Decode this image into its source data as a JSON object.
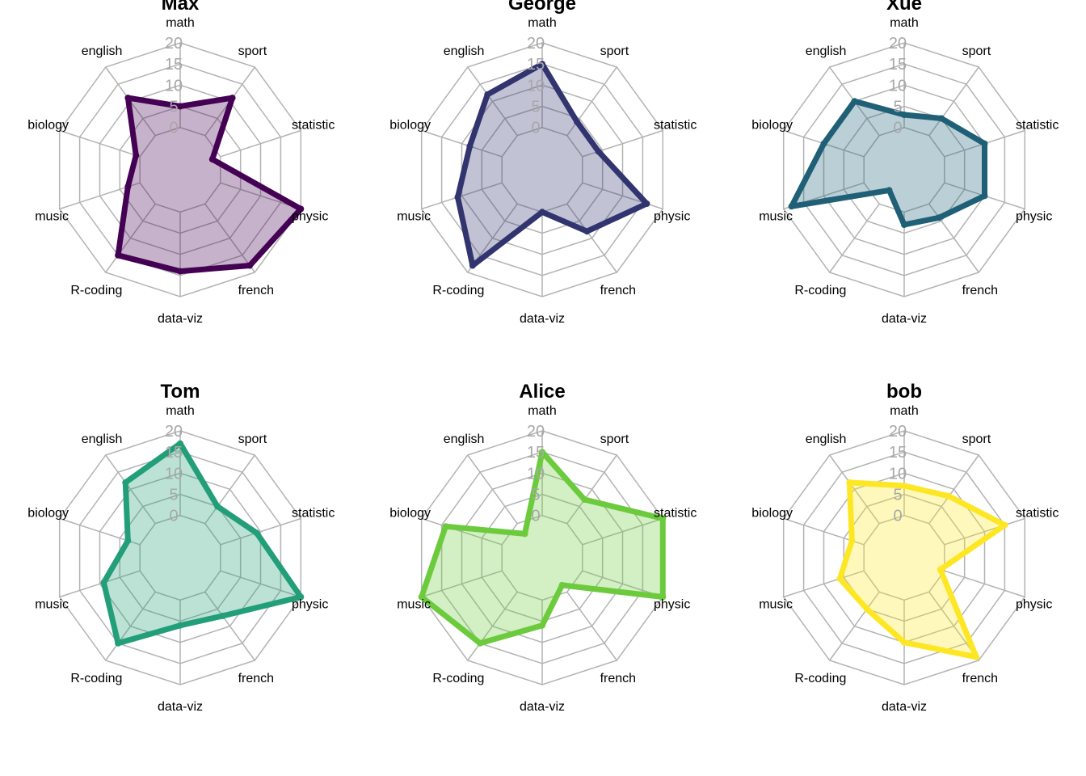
{
  "chart_data": [
    {
      "type": "radar",
      "title": "Max",
      "axes": [
        "math",
        "sport",
        "statistic",
        "physic",
        "french",
        "data-viz",
        "R-coding",
        "music",
        "biology",
        "english"
      ],
      "rticks": [
        0,
        5,
        10,
        15,
        20
      ],
      "rlim": [
        -10,
        20
      ],
      "color": "#440154",
      "values": [
        5,
        11,
        -2,
        20,
        18,
        14,
        15,
        3,
        1,
        11
      ]
    },
    {
      "type": "radar",
      "title": "George",
      "axes": [
        "math",
        "sport",
        "statistic",
        "physic",
        "french",
        "data-viz",
        "R-coding",
        "music",
        "biology",
        "english"
      ],
      "rticks": [
        0,
        5,
        10,
        15,
        20
      ],
      "rlim": [
        -10,
        20
      ],
      "color": "#31346F",
      "values": [
        15,
        4,
        4,
        16,
        8,
        0,
        18,
        11,
        8,
        12
      ]
    },
    {
      "type": "radar",
      "title": "Xue",
      "axes": [
        "math",
        "sport",
        "statistic",
        "physic",
        "french",
        "data-viz",
        "R-coding",
        "music",
        "biology",
        "english"
      ],
      "rticks": [
        0,
        5,
        10,
        15,
        20
      ],
      "rlim": [
        -10,
        20
      ],
      "color": "#1F6076",
      "values": [
        3,
        5,
        10,
        10,
        4,
        3,
        -4,
        18,
        10,
        10
      ]
    },
    {
      "type": "radar",
      "title": "Tom",
      "axes": [
        "math",
        "sport",
        "statistic",
        "physic",
        "french",
        "data-viz",
        "R-coding",
        "music",
        "biology",
        "english"
      ],
      "rticks": [
        0,
        5,
        10,
        15,
        20
      ],
      "rlim": [
        -10,
        20
      ],
      "color": "#229E78",
      "values": [
        17,
        5,
        9,
        20,
        7,
        6,
        15,
        9,
        3,
        12
      ]
    },
    {
      "type": "radar",
      "title": "Alice",
      "axes": [
        "math",
        "sport",
        "statistic",
        "physic",
        "french",
        "data-viz",
        "R-coding",
        "music",
        "biology",
        "english"
      ],
      "rticks": [
        0,
        5,
        10,
        15,
        20
      ],
      "rlim": [
        -10,
        20
      ],
      "color": "#6CCB3D",
      "values": [
        15,
        7,
        20,
        20,
        -2,
        6,
        15,
        20,
        14,
        -3
      ]
    },
    {
      "type": "radar",
      "title": "bob",
      "axes": [
        "math",
        "sport",
        "statistic",
        "physic",
        "french",
        "data-viz",
        "R-coding",
        "music",
        "biology",
        "english"
      ],
      "rticks": [
        0,
        5,
        10,
        15,
        20
      ],
      "rlim": [
        -10,
        20
      ],
      "color": "#FDE725",
      "values": [
        7,
        8,
        15,
        -1,
        19,
        10,
        5,
        6,
        3,
        12
      ]
    }
  ]
}
